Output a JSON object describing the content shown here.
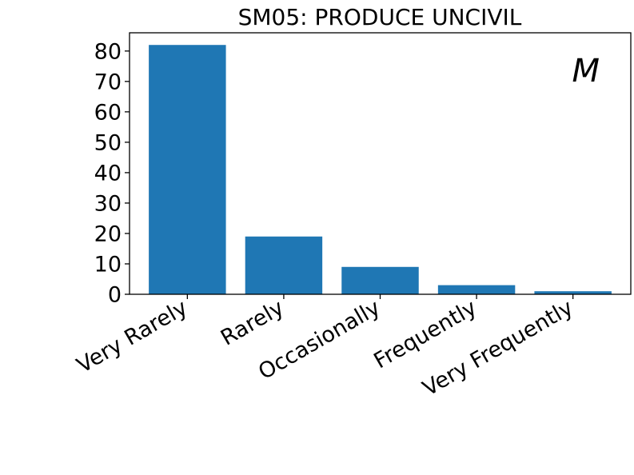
{
  "chart_data": {
    "type": "bar",
    "title": "SM05: PRODUCE UNCIVIL",
    "annotation": "M",
    "categories": [
      "Very Rarely",
      "Rarely",
      "Occasionally",
      "Frequently",
      "Very Frequently"
    ],
    "values": [
      82,
      19,
      9,
      3,
      1
    ],
    "y_ticks": [
      0,
      10,
      20,
      30,
      40,
      50,
      60,
      70,
      80
    ],
    "ylim": [
      0,
      86
    ],
    "xlabel": "",
    "ylabel": "",
    "grid": false,
    "bar_color": "#1f77b4"
  }
}
